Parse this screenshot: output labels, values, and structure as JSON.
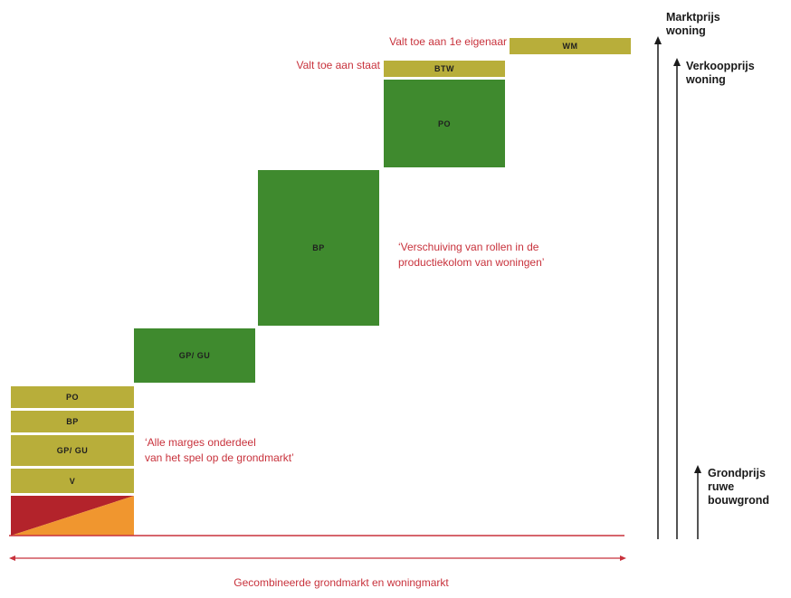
{
  "left_stack": {
    "po": "PO",
    "bp": "BP",
    "gp_gu": "GP/ GU",
    "v": "V"
  },
  "steps": {
    "gp_gu": "GP/ GU",
    "bp": "BP",
    "po": "PO",
    "btw": "BTW",
    "wm": "WM"
  },
  "annotations": {
    "state": "Valt toe aan staat",
    "owner": "Valt toe aan 1e eigenaar",
    "shift_line1": "‘Verschuiving van rollen in de",
    "shift_line2": "productiekolom van woningen’",
    "margins_line1": "‘Alle marges onderdeel",
    "margins_line2": "van het spel op de grondmarkt’"
  },
  "right_axis": {
    "market_price_line1": "Marktprijs",
    "market_price_line2": "woning",
    "sale_price_line1": "Verkoopprijs",
    "sale_price_line2": "woning",
    "ground_price_line1": "Grondprijs",
    "ground_price_line2": "ruwe",
    "ground_price_line3": "bouwgrond"
  },
  "bottom_label": "Gecombineerde grondmarkt en woningmarkt",
  "colors": {
    "olive": "#b8ae3a",
    "green": "#3f8a2e",
    "dark_red": "#b3232b",
    "orange": "#f0962f",
    "accent_red": "#c8323c"
  }
}
